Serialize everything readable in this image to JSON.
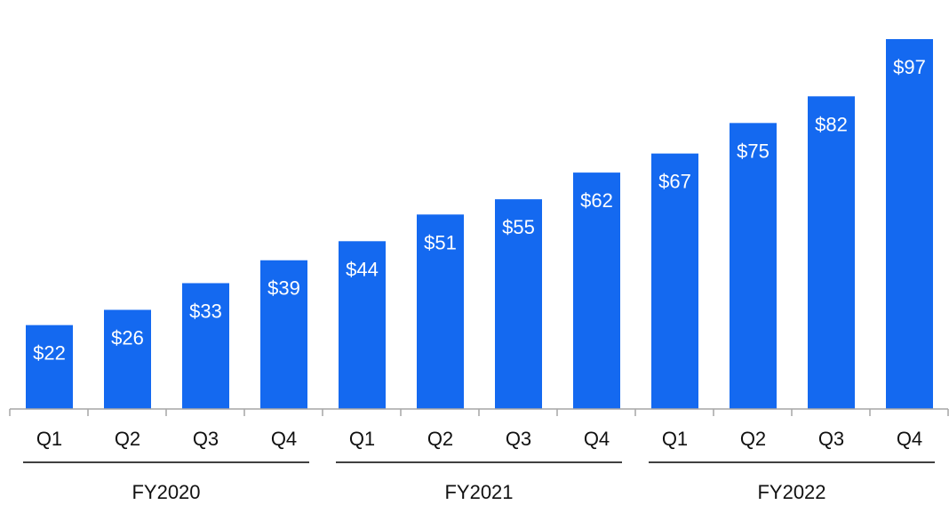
{
  "chart_data": {
    "type": "bar",
    "color": "#1469F0",
    "categories": [
      "Q1",
      "Q2",
      "Q3",
      "Q4",
      "Q1",
      "Q2",
      "Q3",
      "Q4",
      "Q1",
      "Q2",
      "Q3",
      "Q4"
    ],
    "groups": [
      {
        "label": "FY2020",
        "count": 4
      },
      {
        "label": "FY2021",
        "count": 4
      },
      {
        "label": "FY2022",
        "count": 4
      }
    ],
    "values": [
      22,
      26,
      33,
      39,
      44,
      51,
      55,
      62,
      67,
      75,
      82,
      97
    ],
    "value_labels": [
      "$22",
      "$26",
      "$33",
      "$39",
      "$44",
      "$51",
      "$55",
      "$62",
      "$67",
      "$75",
      "$82",
      "$97"
    ],
    "ylim": [
      0,
      97
    ],
    "grid": false,
    "legend": "none"
  }
}
